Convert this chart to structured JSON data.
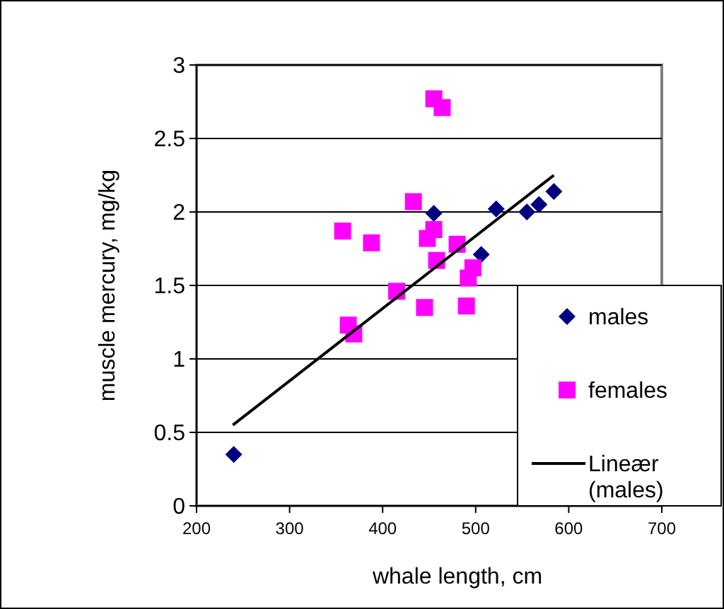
{
  "chart_data": {
    "type": "scatter",
    "xlabel": "whale length, cm",
    "ylabel": "muscle mercury, mg/kg",
    "xlim": [
      200,
      700
    ],
    "xticks": [
      200,
      300,
      400,
      500,
      600,
      700
    ],
    "ylim": [
      0,
      3
    ],
    "yticks": [
      0,
      0.5,
      1,
      1.5,
      2,
      2.5,
      3
    ],
    "grid": "y",
    "legend": "right",
    "series": [
      {
        "name": "males",
        "color": "#000080",
        "marker": "diamond",
        "x": [
          240,
          455,
          522,
          506,
          555,
          568,
          584
        ],
        "values": [
          0.35,
          1.99,
          2.02,
          1.71,
          2.0,
          2.05,
          2.14
        ]
      },
      {
        "name": "females",
        "color": "#ff00ff",
        "marker": "square",
        "x": [
          455,
          464,
          433,
          357,
          388,
          455,
          448,
          480,
          458,
          497,
          492,
          415,
          445,
          490,
          363,
          369
        ],
        "values": [
          2.77,
          2.71,
          2.07,
          1.87,
          1.79,
          1.88,
          1.82,
          1.78,
          1.67,
          1.62,
          1.55,
          1.46,
          1.35,
          1.36,
          1.23,
          1.17
        ]
      },
      {
        "name": "Lineær (males)",
        "type": "line",
        "color": "#000000",
        "marker": "none",
        "line_style": "solid",
        "x": [
          239,
          584
        ],
        "values": [
          0.55,
          2.25
        ]
      }
    ]
  }
}
